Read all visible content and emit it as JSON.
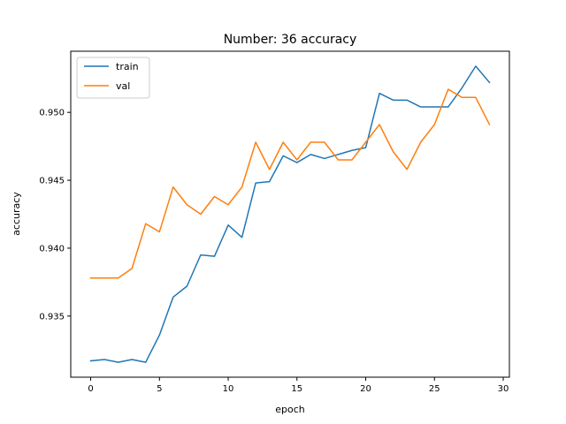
{
  "chart_data": {
    "type": "line",
    "title": "Number: 36 accuracy",
    "xlabel": "epoch",
    "ylabel": "accuracy",
    "xlim": [
      -1.45,
      30.45
    ],
    "ylim": [
      0.9305,
      0.9545
    ],
    "x_ticks": [
      0,
      5,
      10,
      15,
      20,
      25,
      30
    ],
    "y_ticks": [
      0.935,
      0.94,
      0.945,
      0.95
    ],
    "y_tick_labels": [
      "0.935",
      "0.940",
      "0.945",
      "0.950"
    ],
    "grid": false,
    "legend_position": "upper-left",
    "x": [
      0,
      1,
      2,
      3,
      4,
      5,
      6,
      7,
      8,
      9,
      10,
      11,
      12,
      13,
      14,
      15,
      16,
      17,
      18,
      19,
      20,
      21,
      22,
      23,
      24,
      25,
      26,
      27,
      28,
      29
    ],
    "series": [
      {
        "name": "train",
        "color": "#1f77b4",
        "values": [
          0.9317,
          0.9318,
          0.9316,
          0.9318,
          0.9316,
          0.9336,
          0.9364,
          0.9372,
          0.9395,
          0.9394,
          0.9417,
          0.9408,
          0.9448,
          0.9449,
          0.9468,
          0.9463,
          0.9469,
          0.9466,
          0.9469,
          0.9472,
          0.9474,
          0.9514,
          0.9509,
          0.9509,
          0.9504,
          0.9504,
          0.9504,
          0.9518,
          0.9534,
          0.9522
        ]
      },
      {
        "name": "val",
        "color": "#ff7f0e",
        "values": [
          0.9378,
          0.9378,
          0.9378,
          0.9385,
          0.9418,
          0.9412,
          0.9445,
          0.9432,
          0.9425,
          0.9438,
          0.9432,
          0.9445,
          0.9478,
          0.9458,
          0.9478,
          0.9465,
          0.9478,
          0.9478,
          0.9465,
          0.9465,
          0.9478,
          0.9491,
          0.9471,
          0.9458,
          0.9478,
          0.9491,
          0.9517,
          0.9511,
          0.9511,
          0.9491
        ]
      }
    ]
  }
}
